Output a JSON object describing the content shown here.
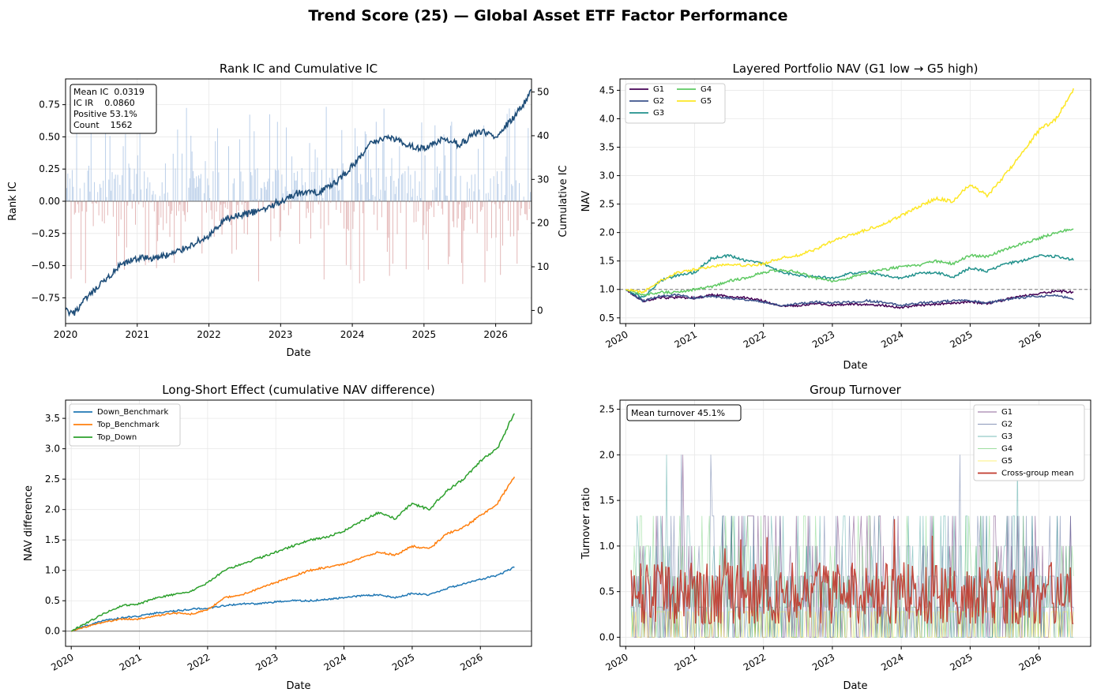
{
  "figure": {
    "suptitle": "Trend Score (25) — Global Asset ETF Factor Performance"
  },
  "years": [
    "2020",
    "2021",
    "2022",
    "2023",
    "2024",
    "2025",
    "2026"
  ],
  "chart_data": [
    {
      "type": "bar+line",
      "title": "Rank IC and Cumulative IC",
      "xlabel": "Date",
      "ylabel": "Rank IC",
      "ylabel2": "Cumulative IC",
      "x_range": [
        "2020-01",
        "2026-07"
      ],
      "ylim": [
        -0.95,
        0.95
      ],
      "ylim2": [
        -3,
        53
      ],
      "yticks": [
        -0.75,
        -0.5,
        -0.25,
        0.0,
        0.25,
        0.5,
        0.75
      ],
      "ytick_labels": [
        "−0.75",
        "−0.50",
        "−0.25",
        "0.00",
        "0.25",
        "0.50",
        "0.75"
      ],
      "yticks2": [
        0,
        10,
        20,
        30,
        40,
        50
      ],
      "stats_box": [
        "Mean IC  0.0319",
        "IC IR    0.0860",
        "Positive 53.1%",
        "Count    1562"
      ],
      "series": [
        {
          "name": "Cumulative IC",
          "color": "#1f4e79",
          "x": [
            2020.0,
            2020.1,
            2020.25,
            2020.5,
            2020.75,
            2021.0,
            2021.25,
            2021.5,
            2021.75,
            2022.0,
            2022.25,
            2022.5,
            2022.75,
            2023.0,
            2023.25,
            2023.5,
            2023.75,
            2024.0,
            2024.25,
            2024.5,
            2024.75,
            2025.0,
            2025.25,
            2025.5,
            2025.75,
            2026.0,
            2026.25,
            2026.5
          ],
          "y": [
            0,
            -1,
            2,
            6,
            10,
            12,
            12,
            13,
            15,
            17,
            21,
            22,
            23,
            25,
            27,
            27,
            29,
            33,
            38,
            40,
            38,
            37,
            39,
            38,
            41,
            40,
            44,
            50
          ]
        }
      ],
      "grid": true
    },
    {
      "type": "line",
      "title": "Layered Portfolio NAV (G1 low → G5 high)",
      "xlabel": "Date",
      "ylabel": "NAV",
      "x_range": [
        "2019-12",
        "2026-10"
      ],
      "ylim": [
        0.4,
        4.7
      ],
      "yticks": [
        0.5,
        1.0,
        1.5,
        2.0,
        2.5,
        3.0,
        3.5,
        4.0,
        4.5
      ],
      "ytick_labels": [
        "0.5",
        "1.0",
        "1.5",
        "2.0",
        "2.5",
        "3.0",
        "3.5",
        "4.0",
        "4.5"
      ],
      "reference_line": 1.0,
      "legend_position": "top-left",
      "x": [
        2020.0,
        2020.25,
        2020.5,
        2020.75,
        2021.0,
        2021.25,
        2021.5,
        2021.75,
        2022.0,
        2022.25,
        2022.5,
        2022.75,
        2023.0,
        2023.25,
        2023.5,
        2023.75,
        2024.0,
        2024.25,
        2024.5,
        2024.75,
        2025.0,
        2025.25,
        2025.5,
        2025.75,
        2026.0,
        2026.25,
        2026.5
      ],
      "series": [
        {
          "name": "G1",
          "color": "#440154",
          "values": [
            1.0,
            0.8,
            0.85,
            0.86,
            0.85,
            0.9,
            0.88,
            0.85,
            0.8,
            0.7,
            0.72,
            0.75,
            0.72,
            0.74,
            0.73,
            0.72,
            0.68,
            0.72,
            0.74,
            0.76,
            0.78,
            0.75,
            0.82,
            0.88,
            0.93,
            0.97,
            0.95
          ]
        },
        {
          "name": "G2",
          "color": "#3b528b",
          "values": [
            1.0,
            0.8,
            0.88,
            0.9,
            0.85,
            0.88,
            0.85,
            0.82,
            0.78,
            0.72,
            0.75,
            0.78,
            0.76,
            0.78,
            0.8,
            0.77,
            0.72,
            0.76,
            0.78,
            0.8,
            0.8,
            0.76,
            0.82,
            0.86,
            0.88,
            0.9,
            0.82
          ]
        },
        {
          "name": "G3",
          "color": "#21918c",
          "values": [
            1.0,
            0.85,
            1.15,
            1.25,
            1.3,
            1.55,
            1.6,
            1.5,
            1.45,
            1.3,
            1.25,
            1.22,
            1.2,
            1.28,
            1.3,
            1.25,
            1.2,
            1.28,
            1.3,
            1.22,
            1.38,
            1.32,
            1.45,
            1.5,
            1.6,
            1.58,
            1.52
          ]
        },
        {
          "name": "G4",
          "color": "#5ec962",
          "values": [
            1.0,
            0.9,
            0.95,
            0.95,
            1.0,
            1.05,
            1.15,
            1.2,
            1.3,
            1.35,
            1.3,
            1.2,
            1.15,
            1.2,
            1.3,
            1.35,
            1.4,
            1.42,
            1.5,
            1.45,
            1.6,
            1.58,
            1.7,
            1.8,
            1.9,
            2.0,
            2.08
          ]
        },
        {
          "name": "G5",
          "color": "#fde725",
          "values": [
            1.0,
            0.95,
            1.15,
            1.3,
            1.35,
            1.4,
            1.45,
            1.42,
            1.45,
            1.55,
            1.6,
            1.7,
            1.85,
            1.95,
            2.05,
            2.15,
            2.3,
            2.45,
            2.6,
            2.55,
            2.85,
            2.65,
            3.0,
            3.4,
            3.8,
            4.0,
            4.5
          ]
        }
      ],
      "grid": true
    },
    {
      "type": "line",
      "title": "Long-Short Effect (cumulative NAV difference)",
      "xlabel": "Date",
      "ylabel": "NAV difference",
      "x_range": [
        "2019-12",
        "2026-10"
      ],
      "ylim": [
        -0.25,
        3.8
      ],
      "yticks": [
        0.0,
        0.5,
        1.0,
        1.5,
        2.0,
        2.5,
        3.0,
        3.5
      ],
      "ytick_labels": [
        "0.0",
        "0.5",
        "1.0",
        "1.5",
        "2.0",
        "2.5",
        "3.0",
        "3.5"
      ],
      "reference_line": 0.0,
      "legend_position": "top-left",
      "x": [
        2020.0,
        2020.25,
        2020.5,
        2020.75,
        2021.0,
        2021.25,
        2021.5,
        2021.75,
        2022.0,
        2022.25,
        2022.5,
        2022.75,
        2023.0,
        2023.25,
        2023.5,
        2023.75,
        2024.0,
        2024.25,
        2024.5,
        2024.75,
        2025.0,
        2025.25,
        2025.5,
        2025.75,
        2026.0,
        2026.25,
        2026.5
      ],
      "series": [
        {
          "name": "Down_Benchmark",
          "color": "#1f77b4",
          "values": [
            0.0,
            0.1,
            0.18,
            0.22,
            0.25,
            0.3,
            0.33,
            0.36,
            0.38,
            0.42,
            0.45,
            0.45,
            0.48,
            0.5,
            0.5,
            0.52,
            0.55,
            0.58,
            0.6,
            0.55,
            0.62,
            0.6,
            0.7,
            0.78,
            0.85,
            0.92,
            1.05
          ]
        },
        {
          "name": "Top_Benchmark",
          "color": "#ff7f0e",
          "values": [
            0.0,
            0.08,
            0.15,
            0.2,
            0.2,
            0.25,
            0.3,
            0.28,
            0.35,
            0.55,
            0.6,
            0.7,
            0.8,
            0.9,
            1.0,
            1.05,
            1.1,
            1.2,
            1.3,
            1.25,
            1.4,
            1.35,
            1.6,
            1.7,
            1.9,
            2.1,
            2.55
          ]
        },
        {
          "name": "Top_Down",
          "color": "#2ca02c",
          "values": [
            0.0,
            0.15,
            0.3,
            0.42,
            0.45,
            0.55,
            0.6,
            0.65,
            0.8,
            1.0,
            1.1,
            1.2,
            1.3,
            1.4,
            1.5,
            1.55,
            1.65,
            1.8,
            1.95,
            1.85,
            2.1,
            2.0,
            2.3,
            2.5,
            2.8,
            3.0,
            3.6
          ]
        }
      ],
      "grid": true
    },
    {
      "type": "line",
      "title": "Group Turnover",
      "xlabel": "Date",
      "ylabel": "Turnover ratio",
      "x_range": [
        "2019-12",
        "2026-10"
      ],
      "ylim": [
        -0.1,
        2.6
      ],
      "yticks": [
        0.0,
        0.5,
        1.0,
        1.5,
        2.0,
        2.5
      ],
      "ytick_labels": [
        "0.0",
        "0.5",
        "1.0",
        "1.5",
        "2.0",
        "2.5"
      ],
      "stats_box": "Mean turnover 45.1%",
      "legend_position": "top-right",
      "series": [
        {
          "name": "G1",
          "color": "#440154",
          "levels": [
            0.0,
            0.33,
            0.67,
            1.0,
            1.33,
            2.0
          ]
        },
        {
          "name": "G2",
          "color": "#3b528b",
          "levels": [
            0.0,
            0.33,
            0.67,
            1.0,
            1.33,
            2.0
          ]
        },
        {
          "name": "G3",
          "color": "#21918c",
          "levels": [
            0.0,
            0.33,
            0.67,
            1.0,
            1.33,
            2.0
          ]
        },
        {
          "name": "G4",
          "color": "#5ec962",
          "levels": [
            0.0,
            0.33,
            0.67,
            1.0,
            1.33,
            2.0
          ]
        },
        {
          "name": "G5",
          "color": "#fde725",
          "levels": [
            0.0,
            0.28
          ]
        },
        {
          "name": "Cross-group mean",
          "color": "#c0392b",
          "mean": 0.451
        }
      ],
      "grid": true
    }
  ]
}
